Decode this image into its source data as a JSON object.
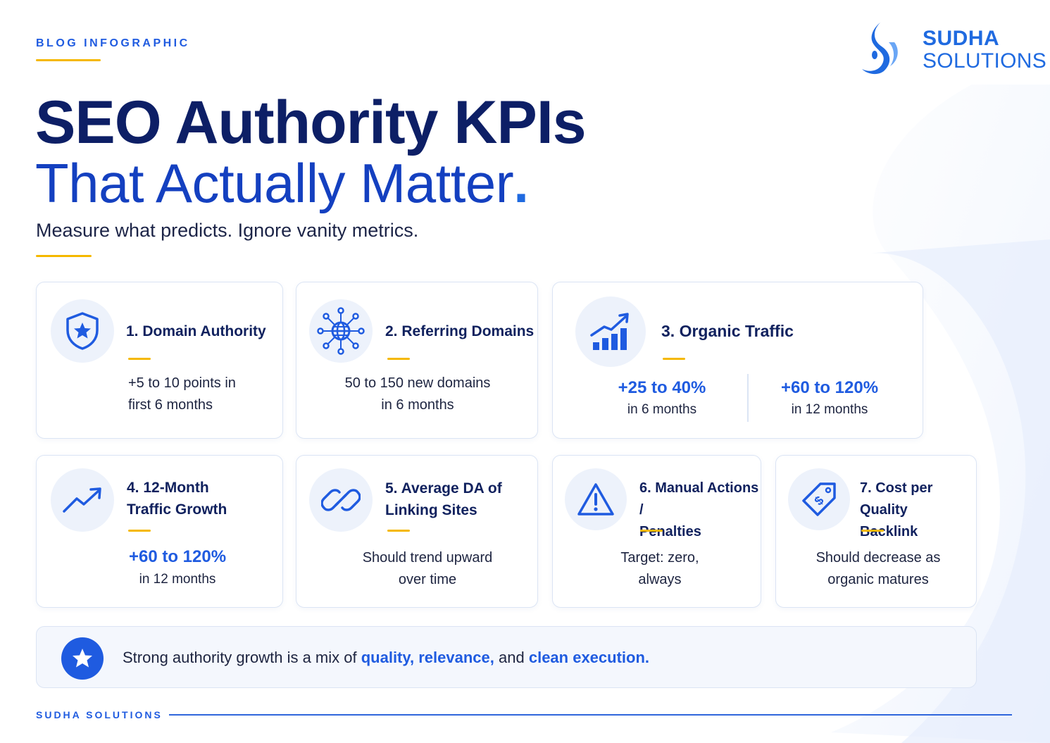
{
  "header": {
    "eyebrow": "BLOG INFOGRAPHIC",
    "title_line1": "SEO Authority KPIs",
    "title_line2": "That Actually Matter",
    "title_dot": ".",
    "subtitle": "Measure what predicts. Ignore vanity metrics."
  },
  "logo": {
    "name_line1": "SUDHA",
    "name_line2": "SOLUTIONS"
  },
  "kpis": [
    {
      "title": "1. Domain Authority",
      "body_line1": "+5 to 10 points in",
      "body_line2": "first 6 months",
      "icon": "shield-star-icon"
    },
    {
      "title": "2. Referring Domains",
      "body_line1": "50 to 150 new domains",
      "body_line2": "in 6 months",
      "icon": "globe-network-icon"
    },
    {
      "title": "3. Organic Traffic",
      "icon": "bar-chart-up-icon",
      "metrics": [
        {
          "value": "+25 to 40%",
          "label": "in 6 months"
        },
        {
          "value": "+60 to 120%",
          "label": "in 12 months"
        }
      ]
    },
    {
      "title_line1": "4. 12-Month",
      "title_line2": "Traffic Growth",
      "metric": "+60 to 120%",
      "metric_label": "in 12 months",
      "icon": "trend-up-icon"
    },
    {
      "title_line1": "5. Average DA of",
      "title_line2": "Linking Sites",
      "body_line1": "Should trend upward",
      "body_line2": "over time",
      "icon": "link-icon"
    },
    {
      "title_line1": "6. Manual Actions /",
      "title_line2": "Penalties",
      "body_line1": "Target: zero,",
      "body_line2": "always",
      "icon": "warning-icon"
    },
    {
      "title_line1": "7. Cost per Quality",
      "title_line2": "Backlink",
      "body_line1": "Should decrease as",
      "body_line2": "organic matures",
      "icon": "price-tag-icon"
    }
  ],
  "banner": {
    "prefix": "Strong authority growth is a mix of",
    "hl1": "quality,",
    "hl2": "relevance,",
    "mid": "and",
    "hl3": "clean execution."
  },
  "footer": {
    "brand": "SUDHA SOLUTIONS"
  },
  "colors": {
    "navy": "#0d1f66",
    "blue": "#1f5be0",
    "accent": "#f5b800"
  }
}
